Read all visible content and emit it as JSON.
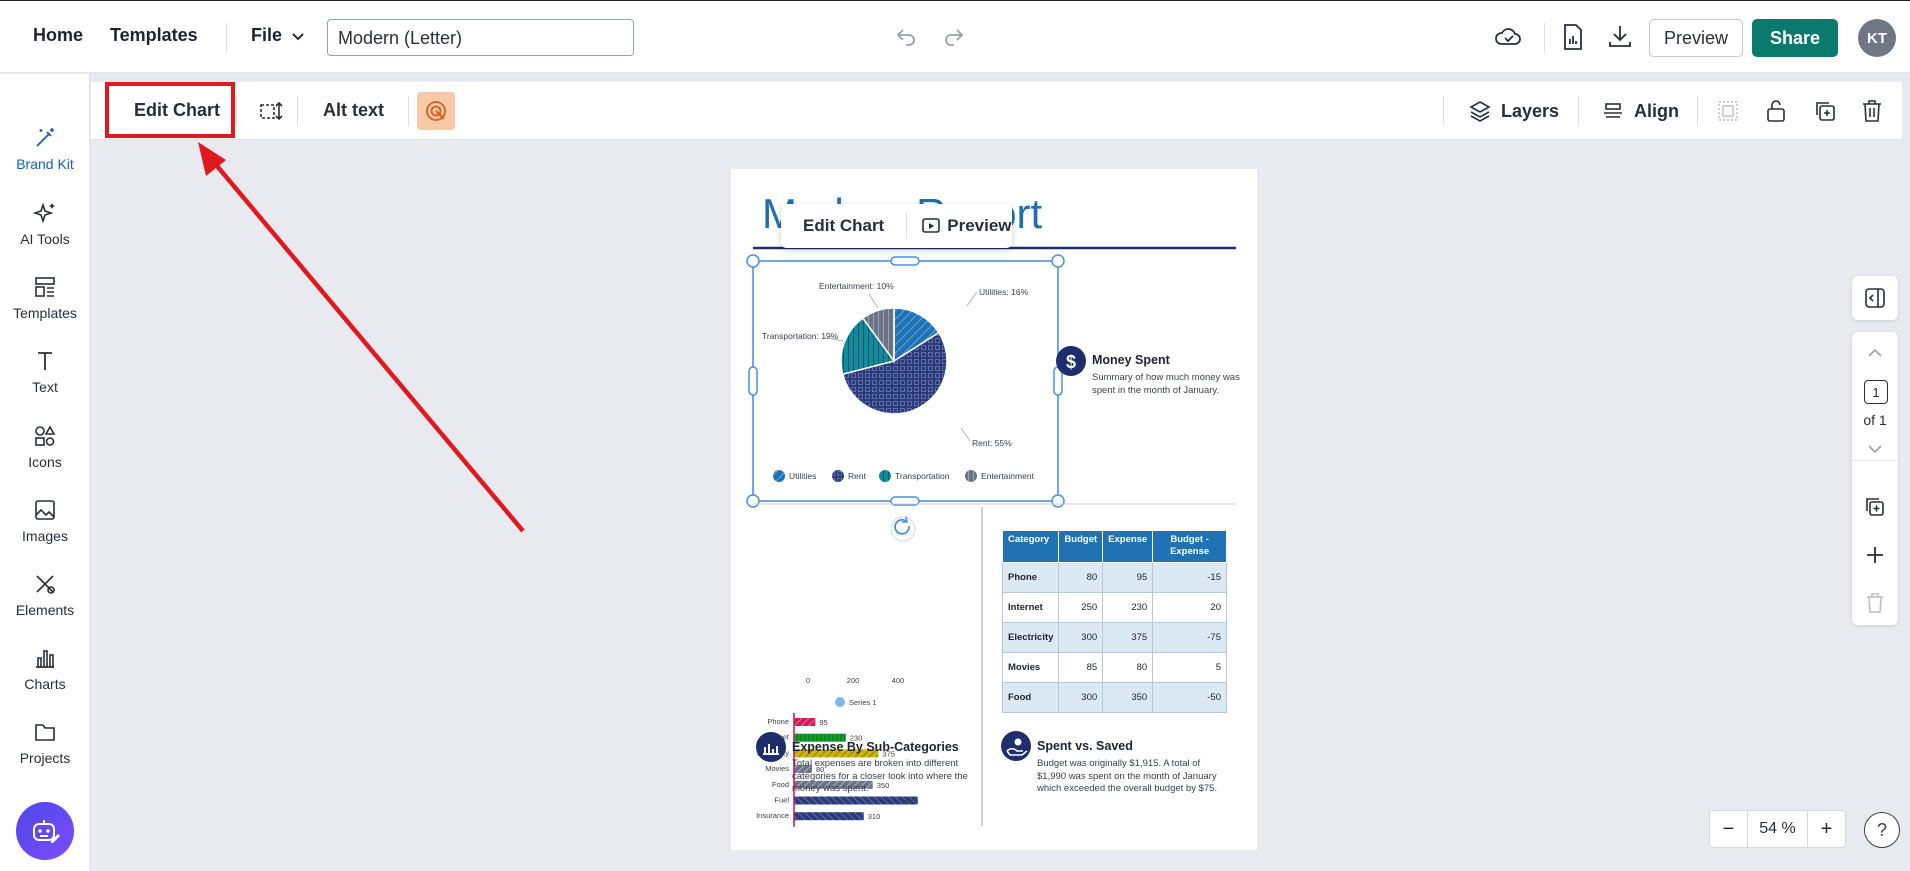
{
  "topbar": {
    "home": "Home",
    "templates": "Templates",
    "file": "File",
    "doc_name": "Modern (Letter)",
    "preview": "Preview",
    "share": "Share",
    "avatar": "KT"
  },
  "sidebar": {
    "items": [
      {
        "label": "Brand Kit"
      },
      {
        "label": "AI Tools"
      },
      {
        "label": "Templates"
      },
      {
        "label": "Text"
      },
      {
        "label": "Icons"
      },
      {
        "label": "Images"
      },
      {
        "label": "Elements"
      },
      {
        "label": "Charts"
      },
      {
        "label": "Projects"
      }
    ]
  },
  "context_toolbar": {
    "edit_chart": "Edit Chart",
    "alt_text": "Alt text",
    "layers": "Layers",
    "align": "Align"
  },
  "canvas": {
    "title": "Modern Report",
    "float_edit_chart": "Edit Chart",
    "float_preview": "Preview",
    "pie": {
      "labels": {
        "utilities": "Utilities: 16%",
        "rent": "Rent: 55%",
        "transportation": "Transportation: 19%",
        "entertainment": "Entertainment: 10%"
      },
      "legend": [
        "Utilities",
        "Rent",
        "Transportation",
        "Entertainment"
      ]
    },
    "money_spent": {
      "title": "Money Spent",
      "body": "Summary of how much money was spent in the month of January."
    },
    "bar": {
      "legend": "Series 1",
      "ticks": [
        "0",
        "200",
        "400"
      ]
    },
    "expense_sub": {
      "title": "Expense By Sub-Categories",
      "body": "Total expenses are broken into different categories for a closer look into where the money was spent."
    },
    "spent_saved": {
      "title": "Spent vs. Saved",
      "body": "Budget was originally $1,915. A total of $1,990 was spent on the month of January which exceeded the overall budget by $75."
    },
    "table": {
      "headers": [
        "Category",
        "Budget",
        "Expense",
        "Budget - Expense"
      ],
      "rows": [
        [
          "Phone",
          "80",
          "95",
          "-15"
        ],
        [
          "Internet",
          "250",
          "230",
          "20"
        ],
        [
          "Electricity",
          "300",
          "375",
          "-75"
        ],
        [
          "Movies",
          "85",
          "80",
          "5"
        ],
        [
          "Food",
          "300",
          "350",
          "-50"
        ]
      ]
    }
  },
  "right_rail": {
    "page_number": "1",
    "of_label": "of 1"
  },
  "zoom": {
    "minus": "−",
    "value": "54 %",
    "plus": "+"
  },
  "help": "?",
  "colors": {
    "share_green": "#0b7a6e",
    "highlight_red": "#e0191f",
    "brand_blue": "#1a5fb4",
    "navy": "#2b3a7a",
    "teal": "#138a9c"
  },
  "chart_data": [
    {
      "type": "pie",
      "categories": [
        "Utilities",
        "Rent",
        "Transportation",
        "Entertainment"
      ],
      "values": [
        16,
        55,
        19,
        10
      ]
    },
    {
      "type": "bar",
      "orientation": "horizontal",
      "categories": [
        "Phone",
        "Internet",
        "Electricity",
        "Movies",
        "Food",
        "Fuel",
        "Insurance"
      ],
      "series": [
        {
          "name": "Series 1",
          "values": [
            95,
            230,
            375,
            80,
            350,
            550,
            310
          ]
        }
      ],
      "xlim": [
        0,
        550
      ]
    }
  ]
}
